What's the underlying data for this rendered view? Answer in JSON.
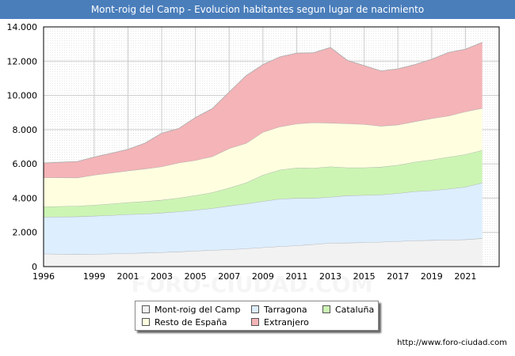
{
  "title": "Mont-roig del Camp - Evolucion habitantes segun lugar de nacimiento",
  "source": "http://www.foro-ciudad.com",
  "watermark": "FORO-CIUDAD.COM",
  "chart_data": {
    "type": "area",
    "stacked": true,
    "x": [
      1996,
      1998,
      1999,
      2000,
      2001,
      2002,
      2003,
      2004,
      2005,
      2006,
      2007,
      2008,
      2009,
      2010,
      2011,
      2012,
      2013,
      2014,
      2015,
      2016,
      2017,
      2018,
      2019,
      2020,
      2021,
      2022
    ],
    "x_ticks": [
      "1996",
      "1999",
      "2001",
      "2003",
      "2005",
      "2007",
      "2009",
      "2011",
      "2013",
      "2015",
      "2017",
      "2019",
      "2021"
    ],
    "y_ticks": [
      "0",
      "2.000",
      "4.000",
      "6.000",
      "8.000",
      "10.000",
      "12.000",
      "14.000"
    ],
    "ylim": [
      0,
      14000
    ],
    "grid": true,
    "legend_position": "bottom",
    "series": [
      {
        "name": "Mont-roig del Camp",
        "color": "#f2f2f2",
        "values": [
          750,
          720,
          730,
          750,
          780,
          800,
          830,
          870,
          920,
          960,
          1000,
          1050,
          1120,
          1180,
          1230,
          1300,
          1380,
          1390,
          1410,
          1440,
          1480,
          1520,
          1540,
          1560,
          1580,
          1650
        ]
      },
      {
        "name": "Tarragona",
        "color": "#ddeeff",
        "values": [
          2150,
          2200,
          2230,
          2250,
          2270,
          2280,
          2310,
          2340,
          2380,
          2450,
          2550,
          2620,
          2700,
          2770,
          2770,
          2700,
          2680,
          2760,
          2760,
          2760,
          2800,
          2870,
          2900,
          2980,
          3070,
          3250
        ]
      },
      {
        "name": "Cataluña",
        "color": "#ccf5b4",
        "values": [
          600,
          620,
          640,
          670,
          700,
          730,
          750,
          800,
          860,
          920,
          1050,
          1230,
          1530,
          1700,
          1770,
          1760,
          1780,
          1630,
          1610,
          1620,
          1650,
          1720,
          1800,
          1860,
          1900,
          1900
        ]
      },
      {
        "name": "Resto de España",
        "color": "#ffffe0",
        "values": [
          1700,
          1650,
          1750,
          1800,
          1850,
          1900,
          1950,
          2050,
          2050,
          2100,
          2300,
          2300,
          2500,
          2520,
          2570,
          2650,
          2550,
          2570,
          2530,
          2390,
          2350,
          2360,
          2410,
          2400,
          2500,
          2450
        ]
      },
      {
        "name": "Extranjero",
        "color": "#f4b4b8",
        "values": [
          850,
          950,
          1050,
          1150,
          1250,
          1500,
          1950,
          2000,
          2500,
          2800,
          3300,
          3950,
          3950,
          4080,
          4130,
          4080,
          4410,
          3700,
          3430,
          3220,
          3270,
          3330,
          3460,
          3710,
          3650,
          3850
        ]
      }
    ]
  },
  "legend": {
    "items": [
      "Mont-roig del Camp",
      "Tarragona",
      "Cataluña",
      "Resto de España",
      "Extranjero"
    ]
  }
}
